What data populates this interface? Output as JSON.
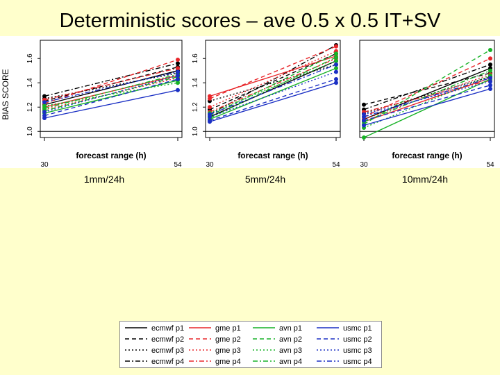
{
  "title": "Deterministic scores – ave 0.5 x 0.5 IT+SV",
  "panel_captions": [
    "1mm/24h",
    "5mm/24h",
    "10mm/24h"
  ],
  "colors": {
    "background": "#ffffcc",
    "ecmwf": "#000000",
    "gme": "#e8262a",
    "avn": "#17b226",
    "usmc": "#1a2fc4"
  },
  "chart_data": [
    {
      "type": "line",
      "title": "",
      "xlabel": "forecast range (h)",
      "ylabel": "BIAS SCORE",
      "x": [
        30,
        54
      ],
      "x_tick_labels": [
        "30",
        "54"
      ],
      "y_ticks": [
        "1.0",
        "1.2",
        "1.4",
        "1.6"
      ],
      "ylim": [
        0.95,
        1.75
      ],
      "reference_line": 1.0,
      "series": [
        {
          "name": "ecmwf p1",
          "values": [
            1.22,
            1.5
          ]
        },
        {
          "name": "ecmwf p2",
          "values": [
            1.25,
            1.53
          ]
        },
        {
          "name": "ecmwf p3",
          "values": [
            1.27,
            1.48
          ]
        },
        {
          "name": "ecmwf p4",
          "values": [
            1.29,
            1.56
          ]
        },
        {
          "name": "gme p1",
          "values": [
            1.2,
            1.46
          ]
        },
        {
          "name": "gme p2",
          "values": [
            1.23,
            1.59
          ]
        },
        {
          "name": "gme p3",
          "values": [
            1.18,
            1.44
          ]
        },
        {
          "name": "gme p4",
          "values": [
            1.26,
            1.52
          ]
        },
        {
          "name": "avn p1",
          "values": [
            1.15,
            1.42
          ]
        },
        {
          "name": "avn p2",
          "values": [
            1.17,
            1.45
          ]
        },
        {
          "name": "avn p3",
          "values": [
            1.21,
            1.4
          ]
        },
        {
          "name": "avn p4",
          "values": [
            1.19,
            1.47
          ]
        },
        {
          "name": "usmc p1",
          "values": [
            1.11,
            1.34
          ]
        },
        {
          "name": "usmc p2",
          "values": [
            1.13,
            1.43
          ]
        },
        {
          "name": "usmc p3",
          "values": [
            1.16,
            1.46
          ]
        },
        {
          "name": "usmc p4",
          "values": [
            1.24,
            1.49
          ]
        }
      ]
    },
    {
      "type": "line",
      "title": "",
      "xlabel": "forecast range (h)",
      "ylabel": "",
      "x": [
        30,
        54
      ],
      "x_tick_labels": [
        "30",
        "54"
      ],
      "y_ticks": [
        "1.0",
        "1.2",
        "1.4",
        "1.6"
      ],
      "ylim": [
        0.95,
        1.75
      ],
      "reference_line": 1.0,
      "series": [
        {
          "name": "ecmwf p1",
          "values": [
            1.12,
            1.58
          ]
        },
        {
          "name": "ecmwf p2",
          "values": [
            1.18,
            1.64
          ]
        },
        {
          "name": "ecmwf p3",
          "values": [
            1.25,
            1.55
          ]
        },
        {
          "name": "ecmwf p4",
          "values": [
            1.14,
            1.71
          ]
        },
        {
          "name": "gme p1",
          "values": [
            1.29,
            1.62
          ]
        },
        {
          "name": "gme p2",
          "values": [
            1.27,
            1.7
          ]
        },
        {
          "name": "gme p3",
          "values": [
            1.2,
            1.66
          ]
        },
        {
          "name": "gme p4",
          "values": [
            1.16,
            1.6
          ]
        },
        {
          "name": "avn p1",
          "values": [
            1.1,
            1.52
          ]
        },
        {
          "name": "avn p2",
          "values": [
            1.13,
            1.64
          ]
        },
        {
          "name": "avn p3",
          "values": [
            1.15,
            1.58
          ]
        },
        {
          "name": "avn p4",
          "values": [
            1.11,
            1.61
          ]
        },
        {
          "name": "usmc p1",
          "values": [
            1.08,
            1.4
          ]
        },
        {
          "name": "usmc p2",
          "values": [
            1.09,
            1.43
          ]
        },
        {
          "name": "usmc p3",
          "values": [
            1.12,
            1.49
          ]
        },
        {
          "name": "usmc p4",
          "values": [
            1.14,
            1.55
          ]
        }
      ]
    },
    {
      "type": "line",
      "title": "",
      "xlabel": "forecast range (h)",
      "ylabel": "",
      "x": [
        30,
        54
      ],
      "x_tick_labels": [
        "30",
        "54"
      ],
      "y_ticks": [],
      "ylim": [
        0.95,
        1.75
      ],
      "reference_line": 1.0,
      "series": [
        {
          "name": "ecmwf p1",
          "values": [
            1.1,
            1.52
          ]
        },
        {
          "name": "ecmwf p2",
          "values": [
            1.22,
            1.48
          ]
        },
        {
          "name": "ecmwf p3",
          "values": [
            1.15,
            1.45
          ]
        },
        {
          "name": "ecmwf p4",
          "values": [
            1.18,
            1.55
          ]
        },
        {
          "name": "gme p1",
          "values": [
            1.08,
            1.44
          ]
        },
        {
          "name": "gme p2",
          "values": [
            1.12,
            1.6
          ]
        },
        {
          "name": "gme p3",
          "values": [
            1.1,
            1.47
          ]
        },
        {
          "name": "gme p4",
          "values": [
            1.16,
            1.42
          ]
        },
        {
          "name": "avn p1",
          "values": [
            0.95,
            1.43
          ]
        },
        {
          "name": "avn p2",
          "values": [
            1.06,
            1.67
          ]
        },
        {
          "name": "avn p3",
          "values": [
            1.03,
            1.46
          ]
        },
        {
          "name": "avn p4",
          "values": [
            1.08,
            1.5
          ]
        },
        {
          "name": "usmc p1",
          "values": [
            1.05,
            1.35
          ]
        },
        {
          "name": "usmc p2",
          "values": [
            1.09,
            1.38
          ]
        },
        {
          "name": "usmc p3",
          "values": [
            1.14,
            1.41
          ]
        },
        {
          "name": "usmc p4",
          "values": [
            1.12,
            1.44
          ]
        }
      ]
    }
  ],
  "legend": {
    "columns": [
      [
        "ecmwf p1",
        "ecmwf p2",
        "ecmwf p3",
        "ecmwf p4"
      ],
      [
        "gme p1",
        "gme p2",
        "gme p3",
        "gme p4"
      ],
      [
        "avn p1",
        "avn p2",
        "avn p3",
        "avn p4"
      ],
      [
        "usmc p1",
        "usmc p2",
        "usmc p3",
        "usmc p4"
      ]
    ]
  }
}
